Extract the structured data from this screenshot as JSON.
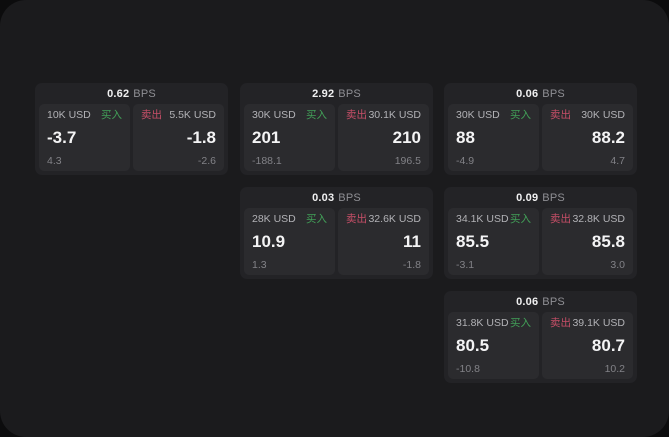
{
  "window": {
    "page_background": "#0c0c0d",
    "window_background": "#1b1b1d"
  },
  "colors": {
    "buy_accent": "#42a058",
    "sell_accent": "#c84f68",
    "card_background": "#232326",
    "panel_background": "#2b2b2e",
    "value_text": "#f4f4f5",
    "muted_text": "#828287"
  },
  "labels": {
    "buy": "买入",
    "sell": "卖出",
    "bps_unit": "BPS"
  },
  "grid": {
    "column_lefts": [
      35,
      240,
      444
    ],
    "row_tops": [
      83,
      187,
      291
    ]
  },
  "cards": [
    {
      "row": 1,
      "col": 1,
      "bps": "0.62",
      "buy": {
        "amount": "10K USD",
        "value": "-3.7",
        "delta": "4.3"
      },
      "sell": {
        "amount": "5.5K USD",
        "value": "-1.8",
        "delta": "-2.6"
      }
    },
    {
      "row": 1,
      "col": 2,
      "bps": "2.92",
      "buy": {
        "amount": "30K USD",
        "value": "201",
        "delta": "-188.1"
      },
      "sell": {
        "amount": "30.1K USD",
        "value": "210",
        "delta": "196.5"
      }
    },
    {
      "row": 1,
      "col": 3,
      "bps": "0.06",
      "buy": {
        "amount": "30K USD",
        "value": "88",
        "delta": "-4.9"
      },
      "sell": {
        "amount": "30K USD",
        "value": "88.2",
        "delta": "4.7"
      }
    },
    {
      "row": 2,
      "col": 2,
      "bps": "0.03",
      "buy": {
        "amount": "28K USD",
        "value": "10.9",
        "delta": "1.3"
      },
      "sell": {
        "amount": "32.6K USD",
        "value": "11",
        "delta": "-1.8"
      }
    },
    {
      "row": 2,
      "col": 3,
      "bps": "0.09",
      "buy": {
        "amount": "34.1K USD",
        "value": "85.5",
        "delta": "-3.1"
      },
      "sell": {
        "amount": "32.8K USD",
        "value": "85.8",
        "delta": "3.0"
      }
    },
    {
      "row": 3,
      "col": 3,
      "bps": "0.06",
      "buy": {
        "amount": "31.8K USD",
        "value": "80.5",
        "delta": "-10.8"
      },
      "sell": {
        "amount": "39.1K USD",
        "value": "80.7",
        "delta": "10.2"
      }
    }
  ]
}
